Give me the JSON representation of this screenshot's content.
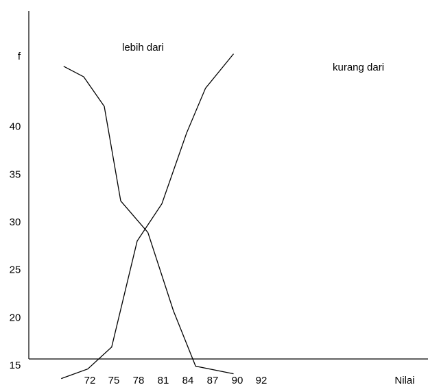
{
  "chart_data": {
    "type": "line",
    "ylabel": "f",
    "xlabel": "Nilai",
    "x_ticks": [
      "72",
      "75",
      "78",
      "81",
      "84",
      "87",
      "90",
      "92"
    ],
    "y_ticks": [
      15,
      20,
      25,
      30,
      35,
      40
    ],
    "ylim": [
      14,
      47
    ],
    "grid": false,
    "line_color": "#000000",
    "series": [
      {
        "name": "lebih dari",
        "points": [
          [
            72.5,
            46.3
          ],
          [
            75,
            45.2
          ],
          [
            77.5,
            42.1
          ],
          [
            79.5,
            32.2
          ],
          [
            82.8,
            28.9
          ],
          [
            85.9,
            20.7
          ],
          [
            88.6,
            14.9
          ],
          [
            92.2,
            14.1
          ]
        ]
      },
      {
        "name": "kurang dari",
        "points": [
          [
            72.2,
            13.6
          ],
          [
            75.5,
            14.6
          ],
          [
            78.4,
            16.9
          ],
          [
            81.5,
            28.0
          ],
          [
            84.5,
            31.9
          ],
          [
            87.5,
            39.3
          ],
          [
            89.8,
            44.0
          ],
          [
            92.2,
            47.6
          ]
        ]
      }
    ]
  }
}
